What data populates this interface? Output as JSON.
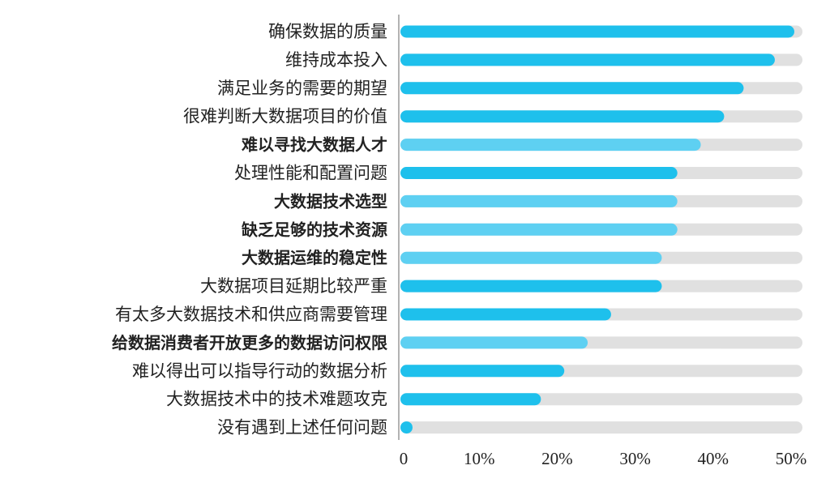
{
  "chart_data": {
    "type": "bar",
    "orientation": "horizontal",
    "categories": [
      "确保数据的质量",
      "维持成本投入",
      "满足业务的需要的期望",
      "很难判断大数据项目的价值",
      "难以寻找大数据人才",
      "处理性能和配置问题",
      "大数据技术选型",
      "缺乏足够的技术资源",
      "大数据运维的稳定性",
      "大数据项目延期比较严重",
      "有太多大数据技术和供应商需要管理",
      "给数据消费者开放更多的数据访问权限",
      "难以得出可以指导行动的数据分析",
      "大数据技术中的技术难题攻克",
      "没有遇到上述任何问题"
    ],
    "values": [
      50,
      47.5,
      43.5,
      41,
      38,
      35,
      35,
      35,
      33,
      33,
      26.5,
      23.5,
      20.5,
      17.5,
      0.5
    ],
    "bold_labels": [
      false,
      false,
      false,
      false,
      true,
      false,
      true,
      true,
      true,
      false,
      false,
      true,
      false,
      false,
      false
    ],
    "xlim": [
      0,
      53
    ],
    "xticks": [
      0,
      10,
      20,
      30,
      40,
      50
    ],
    "xtick_labels": [
      "0",
      "10%",
      "20%",
      "30%",
      "40%",
      "50%"
    ],
    "title": "",
    "xlabel": "",
    "ylabel": "",
    "grid": false,
    "track_color": "#e0e0e0",
    "bar_color": "#1ec0ec",
    "bar_color_light": "#5ed0f2",
    "axis_color": "#9a9a9a"
  }
}
